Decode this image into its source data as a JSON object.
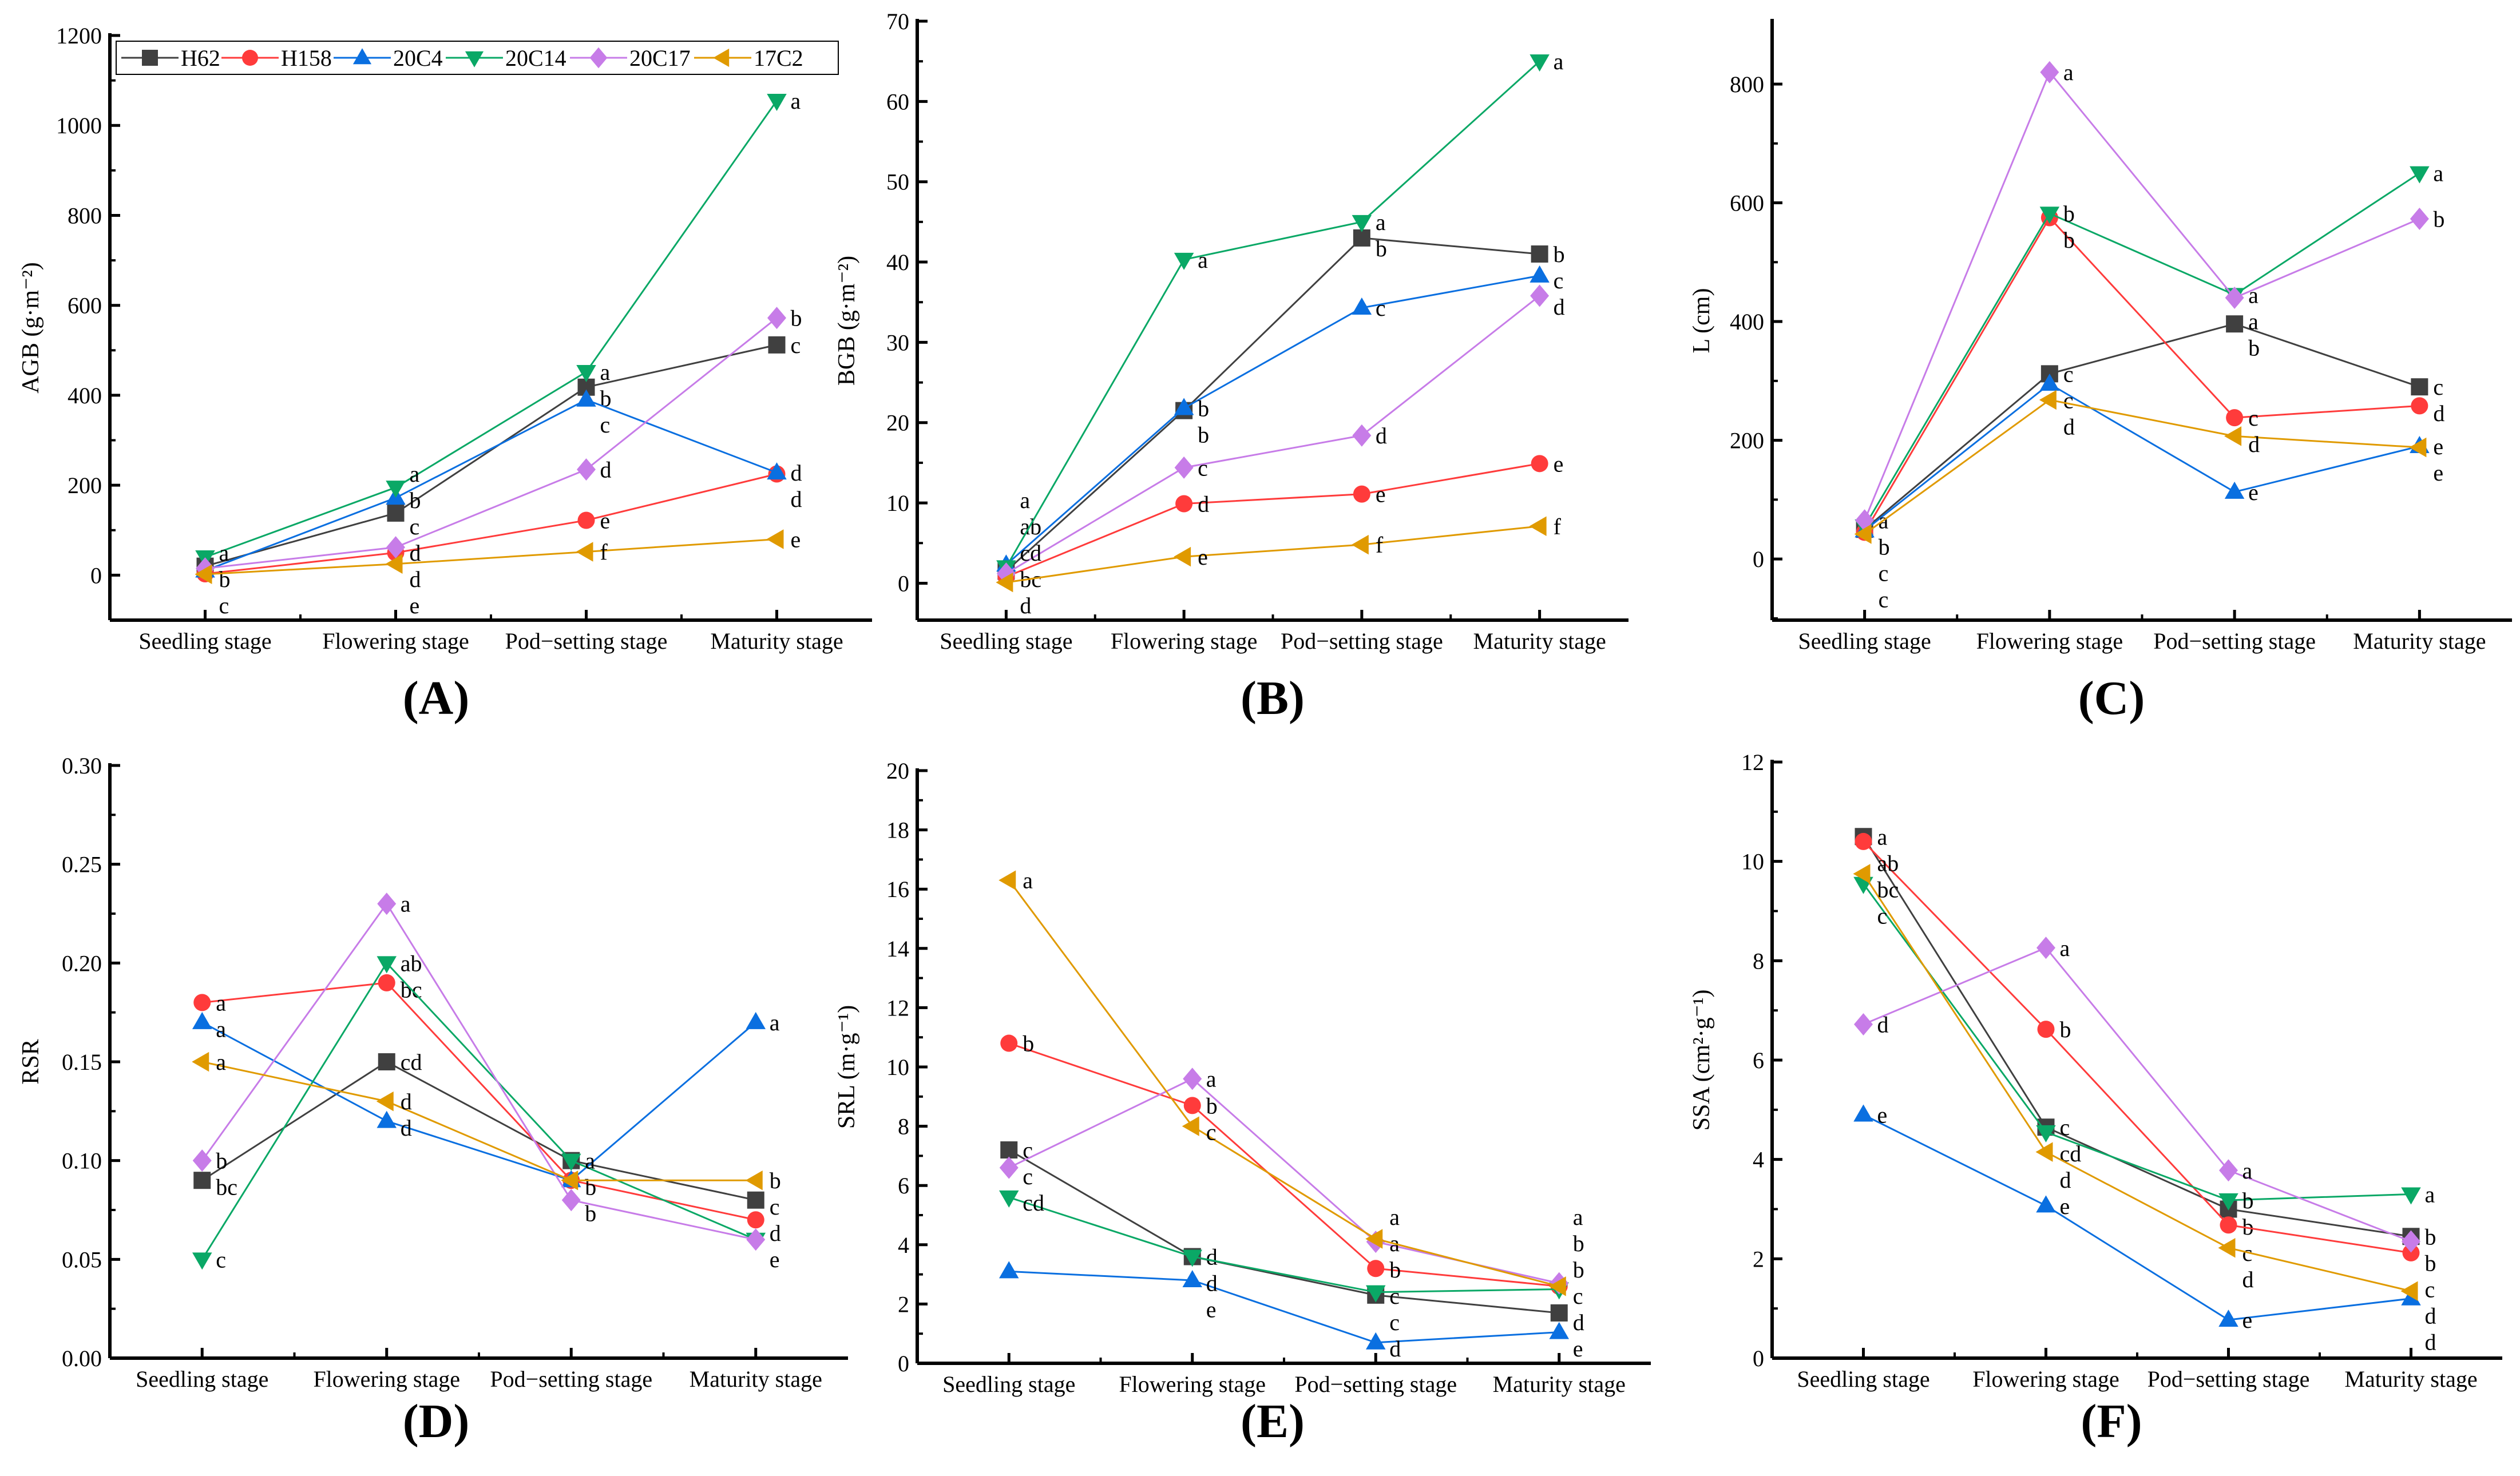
{
  "legend": [
    {
      "name": "H62",
      "color": "#404040",
      "marker": "square"
    },
    {
      "name": "H158",
      "color": "#ff3b3b",
      "marker": "circle"
    },
    {
      "name": "20C4",
      "color": "#0a6fe0",
      "marker": "triangle-up"
    },
    {
      "name": "20C14",
      "color": "#0aa866",
      "marker": "triangle-down"
    },
    {
      "name": "20C17",
      "color": "#c77ce8",
      "marker": "diamond"
    },
    {
      "name": "17C2",
      "color": "#e09a00",
      "marker": "triangle-left"
    }
  ],
  "chart_data": [
    {
      "panel": "(A)",
      "type": "line",
      "ylabel": "AGB (g·m⁻²)",
      "ylim": [
        -100,
        1200
      ],
      "yticks": [
        0,
        200,
        400,
        600,
        800,
        1000,
        1200
      ],
      "categories": [
        "Seedling stage",
        "Flowering stage",
        "Pod−setting stage",
        "Maturity stage"
      ],
      "series": [
        {
          "name": "H62",
          "values": [
            20,
            138,
            418,
            512
          ],
          "letters": [
            "",
            "c",
            "b",
            "c"
          ]
        },
        {
          "name": "H158",
          "values": [
            3,
            50,
            122,
            225
          ],
          "letters": [
            "",
            "d",
            "e",
            "d"
          ]
        },
        {
          "name": "20C4",
          "values": [
            10,
            172,
            390,
            228
          ],
          "letters": [
            "",
            "b",
            "c",
            "d"
          ]
        },
        {
          "name": "20C14",
          "values": [
            40,
            195,
            452,
            1055
          ],
          "letters": [
            "a",
            "a",
            "a",
            "a"
          ]
        },
        {
          "name": "20C17",
          "values": [
            15,
            62,
            235,
            572
          ],
          "letters": [
            "b",
            "d",
            "d",
            "b"
          ]
        },
        {
          "name": "17C2",
          "values": [
            2,
            25,
            52,
            80
          ],
          "letters": [
            "c",
            "e",
            "f",
            "e"
          ]
        }
      ]
    },
    {
      "panel": "(B)",
      "type": "line",
      "ylabel": "BGB (g·m⁻²)",
      "ylim": [
        -4.6,
        70
      ],
      "yticks": [
        0,
        10,
        20,
        30,
        40,
        50,
        60,
        70
      ],
      "categories": [
        "Seedling stage",
        "Flowering stage",
        "Pod−setting stage",
        "Maturity stage"
      ],
      "series": [
        {
          "name": "H62",
          "values": [
            1.5,
            21.5,
            43,
            41
          ],
          "letters": [
            "ab",
            "b",
            "b",
            "b"
          ]
        },
        {
          "name": "H158",
          "values": [
            0.8,
            9.9,
            11.1,
            14.9
          ],
          "letters": [
            "bc",
            "d",
            "e",
            "e"
          ]
        },
        {
          "name": "20C4",
          "values": [
            2.3,
            21.8,
            34.3,
            38.3
          ],
          "letters": [
            "a",
            "b",
            "c",
            "c"
          ]
        },
        {
          "name": "20C14",
          "values": [
            2.0,
            40.3,
            45,
            65
          ],
          "letters": [
            "",
            "a",
            "a",
            "a"
          ]
        },
        {
          "name": "20C17",
          "values": [
            1.2,
            14.4,
            18.4,
            35.8
          ],
          "letters": [
            "cd",
            "c",
            "d",
            "d"
          ]
        },
        {
          "name": "17C2",
          "values": [
            0.1,
            3.3,
            4.8,
            7.1
          ],
          "letters": [
            "d",
            "e",
            "f",
            "f"
          ]
        }
      ]
    },
    {
      "panel": "(C)",
      "type": "line",
      "ylabel": "L (cm)",
      "ylim": [
        -103,
        906
      ],
      "yticks": [
        0,
        200,
        400,
        600,
        800
      ],
      "categories": [
        "Seedling stage",
        "Flowering stage",
        "Pod−setting stage",
        "Maturity stage"
      ],
      "series": [
        {
          "name": "H62",
          "values": [
            50,
            312,
            396,
            290
          ],
          "letters": [
            "c",
            "c",
            "b",
            "c"
          ]
        },
        {
          "name": "H158",
          "values": [
            45,
            575,
            238,
            258
          ],
          "letters": [
            "",
            "b",
            "c",
            "d"
          ]
        },
        {
          "name": "20C4",
          "values": [
            48,
            295,
            113,
            190
          ],
          "letters": [
            "",
            "c",
            "e",
            "e"
          ]
        },
        {
          "name": "20C14",
          "values": [
            55,
            582,
            445,
            650
          ],
          "letters": [
            "b",
            "b",
            "a",
            "a"
          ]
        },
        {
          "name": "20C17",
          "values": [
            65,
            820,
            440,
            573
          ],
          "letters": [
            "a",
            "a",
            "a",
            "b"
          ]
        },
        {
          "name": "17C2",
          "values": [
            42,
            268,
            207,
            188
          ],
          "letters": [
            "c",
            "d",
            "d",
            "e"
          ]
        }
      ]
    },
    {
      "panel": "(D)",
      "type": "line",
      "ylabel": "RSR",
      "ylim": [
        0,
        0.3
      ],
      "yticks": [
        0,
        0.05,
        0.1,
        0.15,
        0.2,
        0.25,
        0.3
      ],
      "ytickfmt": 2,
      "categories": [
        "Seedling stage",
        "Flowering stage",
        "Pod−setting stage",
        "Maturity stage"
      ],
      "series": [
        {
          "name": "H62",
          "values": [
            0.09,
            0.15,
            0.1,
            0.08
          ],
          "letters": [
            "bc",
            "cd",
            "",
            "c"
          ]
        },
        {
          "name": "H158",
          "values": [
            0.18,
            0.19,
            0.09,
            0.07
          ],
          "letters": [
            "a",
            "bc",
            "b",
            "d"
          ]
        },
        {
          "name": "20C4",
          "values": [
            0.17,
            0.12,
            0.09,
            0.17
          ],
          "letters": [
            "a",
            "d",
            "",
            "a"
          ]
        },
        {
          "name": "20C14",
          "values": [
            0.05,
            0.2,
            0.1,
            0.06
          ],
          "letters": [
            "c",
            "ab",
            "a",
            ""
          ]
        },
        {
          "name": "20C17",
          "values": [
            0.1,
            0.23,
            0.08,
            0.06
          ],
          "letters": [
            "b",
            "a",
            "",
            "e"
          ]
        },
        {
          "name": "17C2",
          "values": [
            0.15,
            0.13,
            0.09,
            0.09
          ],
          "letters": [
            "a",
            "d",
            "b",
            "b"
          ]
        }
      ]
    },
    {
      "panel": "(E)",
      "type": "line",
      "ylabel": "SRL (m·g⁻¹)",
      "ylim": [
        0,
        20
      ],
      "yticks": [
        0,
        2,
        4,
        6,
        8,
        10,
        12,
        14,
        16,
        18,
        20
      ],
      "categories": [
        "Seedling stage",
        "Flowering stage",
        "Pod−setting stage",
        "Maturity stage"
      ],
      "series": [
        {
          "name": "H62",
          "values": [
            7.2,
            3.6,
            2.3,
            1.7
          ],
          "letters": [
            "c",
            "d",
            "c",
            "d"
          ]
        },
        {
          "name": "H158",
          "values": [
            10.8,
            8.7,
            3.2,
            2.6
          ],
          "letters": [
            "b",
            "b",
            "b",
            "b"
          ]
        },
        {
          "name": "20C4",
          "values": [
            3.1,
            2.8,
            0.7,
            1.05
          ],
          "letters": [
            "",
            "e",
            "d",
            "e"
          ]
        },
        {
          "name": "20C14",
          "values": [
            5.6,
            3.6,
            2.4,
            2.5
          ],
          "letters": [
            "cd",
            "d",
            "c",
            "c"
          ]
        },
        {
          "name": "20C17",
          "values": [
            6.6,
            9.6,
            4.1,
            2.7
          ],
          "letters": [
            "c",
            "a",
            "a",
            "a"
          ]
        },
        {
          "name": "17C2",
          "values": [
            16.3,
            8.0,
            4.2,
            2.6
          ],
          "letters": [
            "a",
            "c",
            "a",
            "b"
          ]
        }
      ]
    },
    {
      "panel": "(F)",
      "type": "line",
      "ylabel": "SSA (cm²·g⁻¹)",
      "ylim": [
        0,
        12
      ],
      "yticks": [
        0,
        2,
        4,
        6,
        8,
        10,
        12
      ],
      "categories": [
        "Seedling stage",
        "Flowering stage",
        "Pod−setting stage",
        "Maturity stage"
      ],
      "series": [
        {
          "name": "H62",
          "values": [
            10.5,
            4.65,
            3.0,
            2.45
          ],
          "letters": [
            "a",
            "c",
            "b",
            "b"
          ]
        },
        {
          "name": "H158",
          "values": [
            10.4,
            6.62,
            2.68,
            2.12
          ],
          "letters": [
            "ab",
            "b",
            "c",
            "c"
          ]
        },
        {
          "name": "20C4",
          "values": [
            4.9,
            3.07,
            0.77,
            1.2
          ],
          "letters": [
            "e",
            "e",
            "e",
            "d"
          ]
        },
        {
          "name": "20C14",
          "values": [
            9.55,
            4.55,
            3.18,
            3.3
          ],
          "letters": [
            "c",
            "cd",
            "b",
            "a"
          ]
        },
        {
          "name": "20C17",
          "values": [
            6.72,
            8.26,
            3.78,
            2.35
          ],
          "letters": [
            "d",
            "a",
            "a",
            "b"
          ]
        },
        {
          "name": "17C2",
          "values": [
            9.75,
            4.15,
            2.22,
            1.35
          ],
          "letters": [
            "bc",
            "d",
            "d",
            "d"
          ]
        }
      ]
    }
  ]
}
